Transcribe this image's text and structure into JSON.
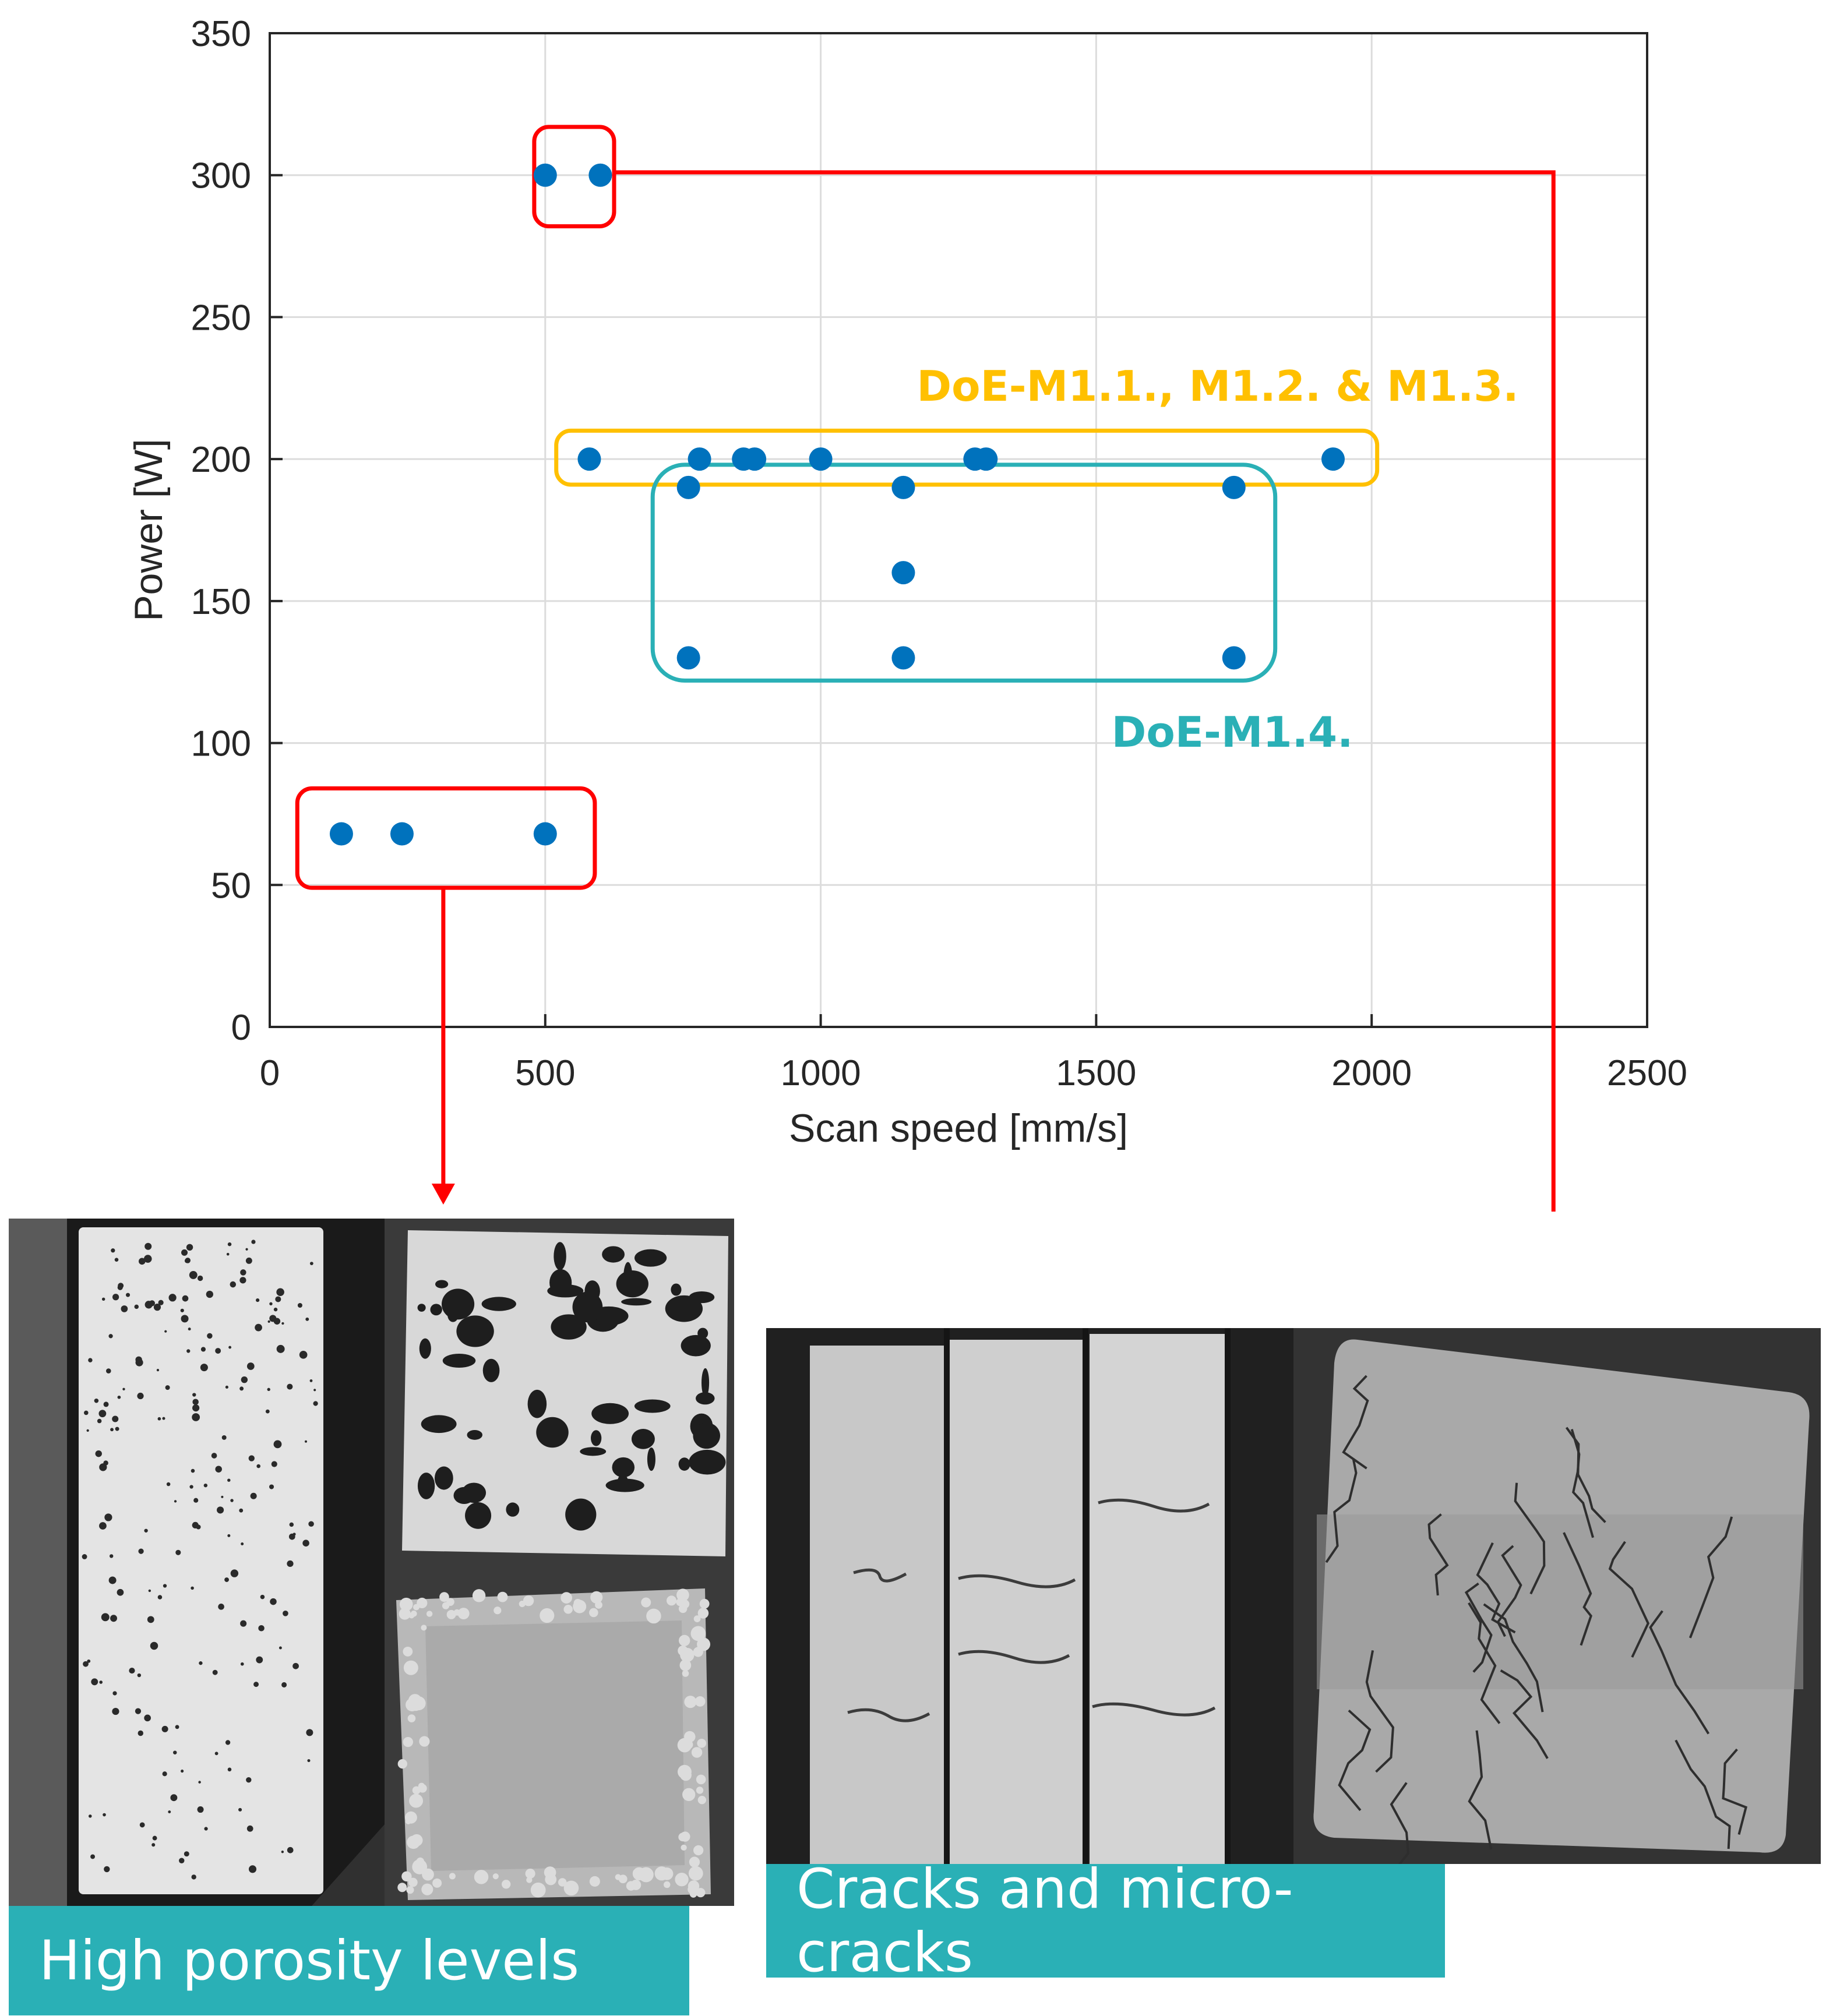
{
  "chart_data": {
    "type": "scatter",
    "xlabel": "Scan speed [mm/s]",
    "ylabel": "Power [W]",
    "xlim": [
      0,
      2500
    ],
    "ylim": [
      0,
      350
    ],
    "xticks": [
      0,
      500,
      1000,
      1500,
      2000,
      2500
    ],
    "yticks": [
      0,
      50,
      100,
      150,
      200,
      250,
      300,
      350
    ],
    "grid": true,
    "marker_color": "#0072bd",
    "points": [
      {
        "x": 500,
        "y": 300
      },
      {
        "x": 600,
        "y": 300
      },
      {
        "x": 580,
        "y": 200
      },
      {
        "x": 780,
        "y": 200
      },
      {
        "x": 860,
        "y": 200
      },
      {
        "x": 880,
        "y": 200
      },
      {
        "x": 1000,
        "y": 200
      },
      {
        "x": 1280,
        "y": 200
      },
      {
        "x": 1300,
        "y": 200
      },
      {
        "x": 1930,
        "y": 200
      },
      {
        "x": 760,
        "y": 190
      },
      {
        "x": 1150,
        "y": 190
      },
      {
        "x": 1750,
        "y": 190
      },
      {
        "x": 1150,
        "y": 160
      },
      {
        "x": 760,
        "y": 130
      },
      {
        "x": 1150,
        "y": 130
      },
      {
        "x": 1750,
        "y": 130
      },
      {
        "x": 130,
        "y": 68
      },
      {
        "x": 240,
        "y": 68
      },
      {
        "x": 500,
        "y": 68
      }
    ],
    "groups": [
      {
        "label": "",
        "color": "#ff0000",
        "x_range": [
          480,
          625
        ],
        "y_range": [
          282,
          317
        ]
      },
      {
        "label": "DoE-M1.1., M1.2. & M1.3.",
        "color": "#ffc000",
        "x_range": [
          520,
          2010
        ],
        "y_range": [
          191,
          210
        ]
      },
      {
        "label": "DoE-M1.4.",
        "color": "#2ab0b6",
        "x_range": [
          695,
          1825
        ],
        "y_range": [
          122,
          198
        ]
      },
      {
        "label": "",
        "color": "#ff0000",
        "x_range": [
          50,
          590
        ],
        "y_range": [
          49,
          84
        ]
      }
    ],
    "arrow_color": "#ff0000"
  },
  "micrographs": {
    "left_caption": "High porosity levels",
    "right_caption": "Cracks and micro-cracks",
    "caption_color": "#2ab0b6"
  }
}
